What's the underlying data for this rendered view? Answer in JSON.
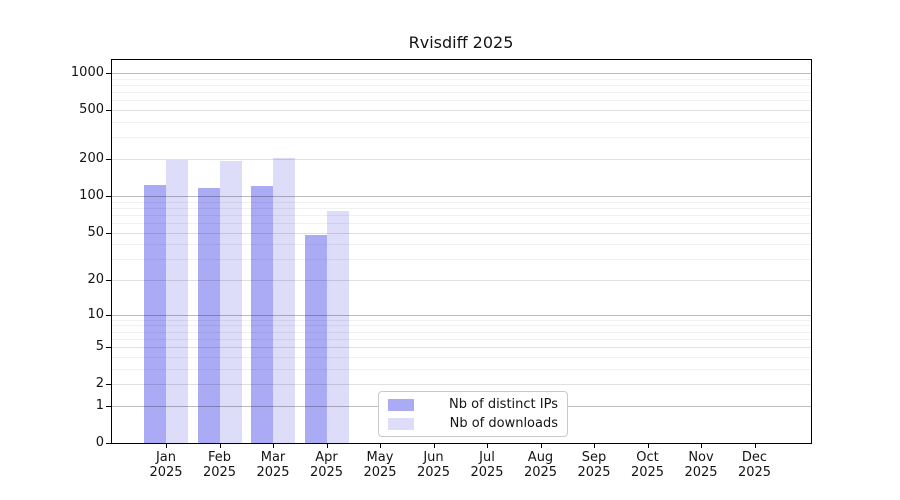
{
  "title": "Rvisdiff 2025",
  "colors": {
    "distinct_ips": "#aaaaf5",
    "downloads": "#ddddfa",
    "axis": "#000000",
    "background": "#ffffff"
  },
  "legend": {
    "items": [
      {
        "label": "Nb of distinct IPs",
        "color": "#aaaaf5"
      },
      {
        "label": "Nb of downloads",
        "color": "#ddddfa"
      }
    ]
  },
  "chart_data": {
    "type": "bar",
    "title": "Rvisdiff 2025",
    "categories": [
      "Jan 2025",
      "Feb 2025",
      "Mar 2025",
      "Apr 2025",
      "May 2025",
      "Jun 2025",
      "Jul 2025",
      "Aug 2025",
      "Sep 2025",
      "Oct 2025",
      "Nov 2025",
      "Dec 2025"
    ],
    "series": [
      {
        "name": "Nb of distinct IPs",
        "color": "#aaaaf5",
        "values": [
          124,
          116,
          121,
          48,
          null,
          null,
          null,
          null,
          null,
          null,
          null,
          null
        ]
      },
      {
        "name": "Nb of downloads",
        "color": "#ddddfa",
        "values": [
          197,
          193,
          205,
          75,
          null,
          null,
          null,
          null,
          null,
          null,
          null,
          null
        ]
      }
    ],
    "xlabel": "",
    "ylabel": "",
    "yticks": [
      0,
      1,
      2,
      5,
      10,
      20,
      50,
      100,
      200,
      500,
      1000
    ],
    "ylim": [
      0,
      1275
    ],
    "yscale": "log10(1+y)",
    "grid": "horizontal",
    "legend_position": "lower-center"
  }
}
